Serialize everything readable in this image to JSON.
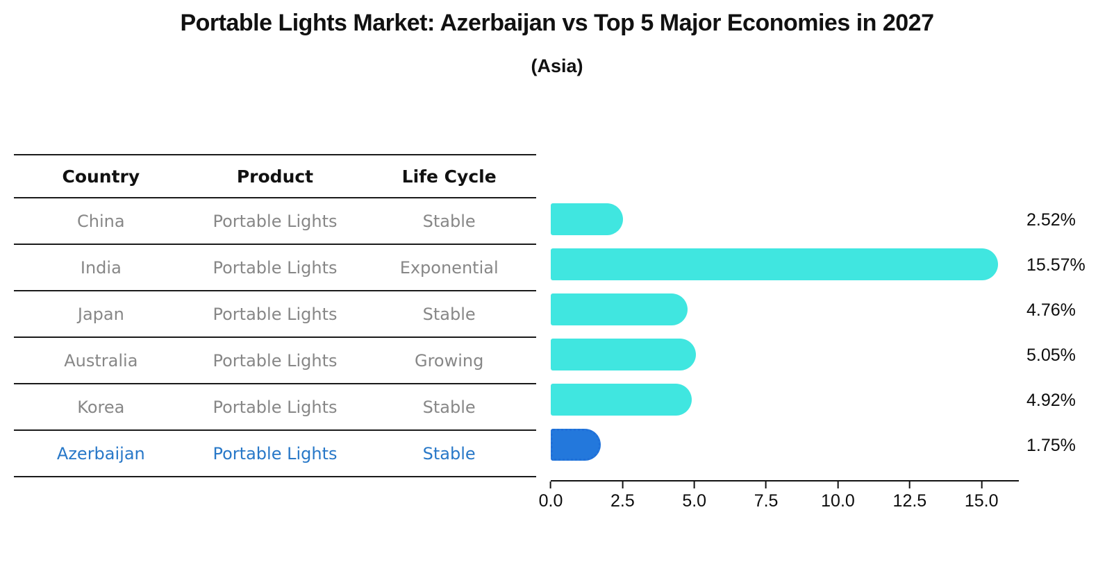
{
  "chart_data": {
    "type": "bar",
    "orientation": "horizontal",
    "title": "Portable Lights Market: Azerbaijan vs Top 5 Major Economies in 2027",
    "subtitle": "(Asia)",
    "categories": [
      "China",
      "India",
      "Japan",
      "Australia",
      "Korea",
      "Azerbaijan"
    ],
    "values": [
      2.52,
      15.57,
      4.76,
      5.05,
      4.92,
      1.75
    ],
    "value_labels": [
      "2.52%",
      "15.57%",
      "4.76%",
      "5.05%",
      "4.92%",
      "1.75%"
    ],
    "x_ticks": [
      "0.0",
      "2.5",
      "5.0",
      "7.5",
      "10.0",
      "12.5",
      "15.0"
    ],
    "xlim": [
      0,
      16.3
    ],
    "grid": false,
    "legend": "none",
    "bar_color": "#40e6e0",
    "highlight_index": 5,
    "highlight_color": "#2378dc",
    "highlight_edge_color": "#1f6fd8",
    "highlight_text_color": "#2878c8"
  },
  "table": {
    "headers": [
      "Country",
      "Product",
      "Life Cycle"
    ],
    "rows": [
      {
        "country": "China",
        "product": "Portable Lights",
        "life_cycle": "Stable"
      },
      {
        "country": "India",
        "product": "Portable Lights",
        "life_cycle": "Exponential"
      },
      {
        "country": "Japan",
        "product": "Portable Lights",
        "life_cycle": "Stable"
      },
      {
        "country": "Australia",
        "product": "Portable Lights",
        "life_cycle": "Growing"
      },
      {
        "country": "Korea",
        "product": "Portable Lights",
        "life_cycle": "Stable"
      },
      {
        "country": "Azerbaijan",
        "product": "Portable Lights",
        "life_cycle": "Stable"
      }
    ]
  }
}
